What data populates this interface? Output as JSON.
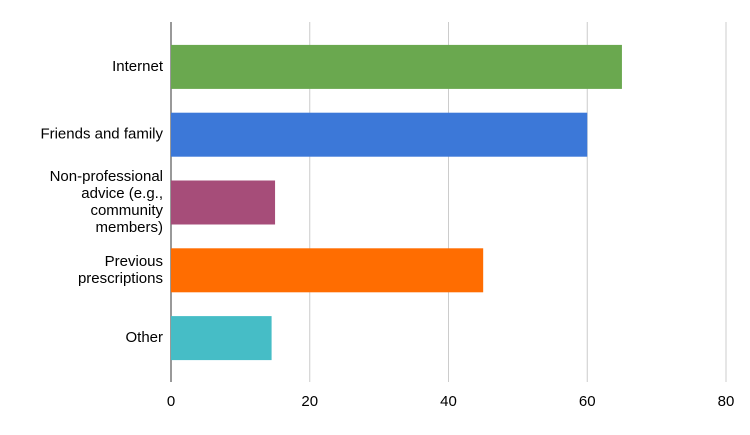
{
  "chart_data": {
    "type": "hbar",
    "categories": [
      "Internet",
      "Friends and family",
      "Non-professional advice (e.g., community members)",
      "Previous prescriptions",
      "Other"
    ],
    "values": [
      65,
      60,
      15,
      45,
      14.5
    ],
    "colors": [
      "#6aa84f",
      "#3c78d8",
      "#a64d79",
      "#ff6d01",
      "#46bdc6"
    ],
    "xlim": [
      0,
      80
    ],
    "xticks": [
      0,
      20,
      40,
      60,
      80
    ],
    "grid": true
  }
}
